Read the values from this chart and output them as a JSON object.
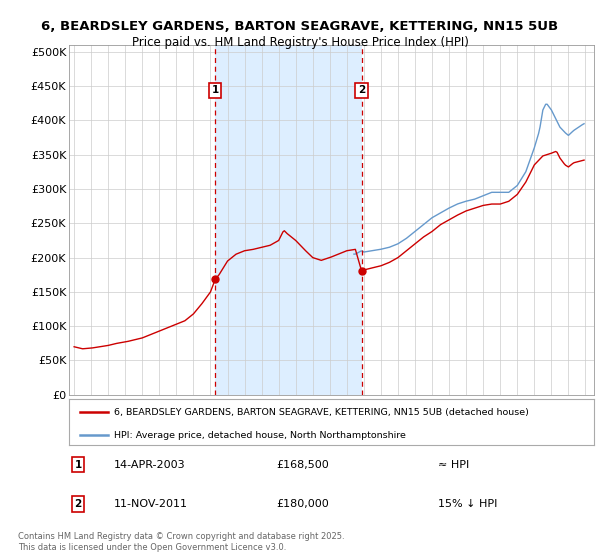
{
  "title_line1": "6, BEARDSLEY GARDENS, BARTON SEAGRAVE, KETTERING, NN15 5UB",
  "title_line2": "Price paid vs. HM Land Registry's House Price Index (HPI)",
  "ylabel_ticks": [
    "£0",
    "£50K",
    "£100K",
    "£150K",
    "£200K",
    "£250K",
    "£300K",
    "£350K",
    "£400K",
    "£450K",
    "£500K"
  ],
  "ytick_values": [
    0,
    50000,
    100000,
    150000,
    200000,
    250000,
    300000,
    350000,
    400000,
    450000,
    500000
  ],
  "ylim": [
    0,
    510000
  ],
  "xlim_start": 1994.7,
  "xlim_end": 2025.5,
  "sale1_date": 2003.28,
  "sale1_price": 168500,
  "sale1_label": "1",
  "sale2_date": 2011.87,
  "sale2_price": 180000,
  "sale2_label": "2",
  "red_line_color": "#cc0000",
  "blue_line_color": "#6699cc",
  "dashed_line_color": "#cc0000",
  "grid_color": "#cccccc",
  "chart_bg_color": "#ffffff",
  "band_color": "#ddeeff",
  "box_color": "#cc0000",
  "legend_line1": "6, BEARDSLEY GARDENS, BARTON SEAGRAVE, KETTERING, NN15 5UB (detached house)",
  "legend_line2": "HPI: Average price, detached house, North Northamptonshire",
  "footnote": "Contains HM Land Registry data © Crown copyright and database right 2025.\nThis data is licensed under the Open Government Licence v3.0.",
  "ann1_date": "14-APR-2003",
  "ann1_price": "£168,500",
  "ann1_rel": "≈ HPI",
  "ann2_date": "11-NOV-2011",
  "ann2_price": "£180,000",
  "ann2_rel": "15% ↓ HPI"
}
